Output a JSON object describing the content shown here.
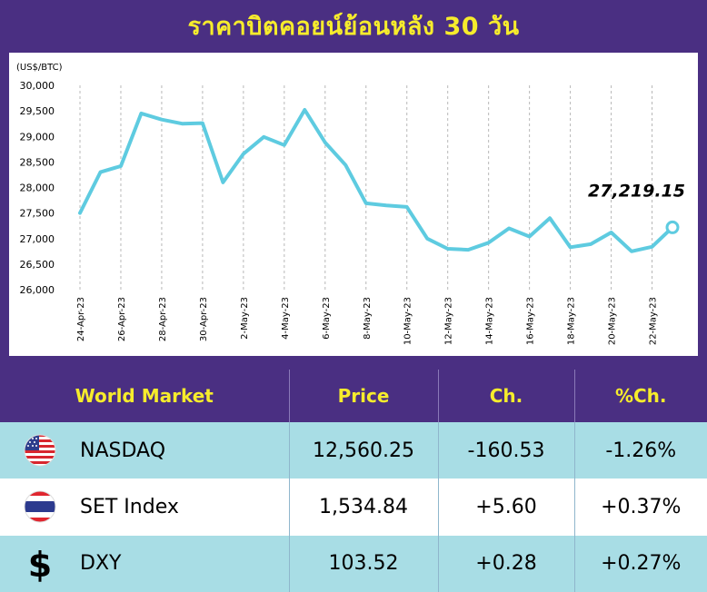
{
  "title": "ราคาบิตคอยน์ย้อนหลัง 30 วัน",
  "chart_data": {
    "type": "line",
    "ylabel": "(US$/BTC)",
    "ylim": [
      26000,
      30000
    ],
    "yticks": [
      "26,000",
      "26,500",
      "27,000",
      "27,500",
      "28,000",
      "28,500",
      "29,000",
      "29,500",
      "30,000"
    ],
    "ytick_values": [
      26000,
      26500,
      27000,
      27500,
      28000,
      28500,
      29000,
      29500,
      30000
    ],
    "x_tick_labels": [
      "24-Apr-23",
      "26-Apr-23",
      "28-Apr-23",
      "30-Apr-23",
      "2-May-23",
      "4-May-23",
      "6-May-23",
      "8-May-23",
      "10-May-23",
      "12-May-23",
      "14-May-23",
      "16-May-23",
      "18-May-23",
      "20-May-23",
      "22-May-23"
    ],
    "x": [
      "24-Apr-23",
      "25-Apr-23",
      "26-Apr-23",
      "27-Apr-23",
      "28-Apr-23",
      "29-Apr-23",
      "30-Apr-23",
      "1-May-23",
      "2-May-23",
      "3-May-23",
      "4-May-23",
      "5-May-23",
      "6-May-23",
      "7-May-23",
      "8-May-23",
      "9-May-23",
      "10-May-23",
      "11-May-23",
      "12-May-23",
      "13-May-23",
      "14-May-23",
      "15-May-23",
      "16-May-23",
      "17-May-23",
      "18-May-23",
      "19-May-23",
      "20-May-23",
      "21-May-23",
      "22-May-23",
      "23-May-23"
    ],
    "series": [
      {
        "values": [
          27500,
          28300,
          28420,
          29450,
          29330,
          29250,
          29260,
          28100,
          28660,
          28990,
          28830,
          29520,
          28880,
          28440,
          27690,
          27650,
          27620,
          27000,
          26800,
          26780,
          26920,
          27200,
          27040,
          27400,
          26830,
          26890,
          27120,
          26750,
          26840,
          27219.15
        ]
      }
    ],
    "last_value_label": "27,219.15",
    "line_color": "#5ecbe0",
    "grid": "vertical-dashed"
  },
  "table": {
    "headers": [
      "World Market",
      "Price",
      "Ch.",
      "%Ch."
    ],
    "rows": [
      {
        "name": "NASDAQ",
        "icon": "us-flag-icon",
        "price": "12,560.25",
        "ch": "-160.53",
        "pch": "-1.26%"
      },
      {
        "name": "SET Index",
        "icon": "thai-flag-icon",
        "price": "1,534.84",
        "ch": "+5.60",
        "pch": "+0.37%"
      },
      {
        "name": "DXY",
        "icon": "dollar-icon",
        "price": "103.52",
        "ch": "+0.28",
        "pch": "+0.27%"
      }
    ]
  }
}
